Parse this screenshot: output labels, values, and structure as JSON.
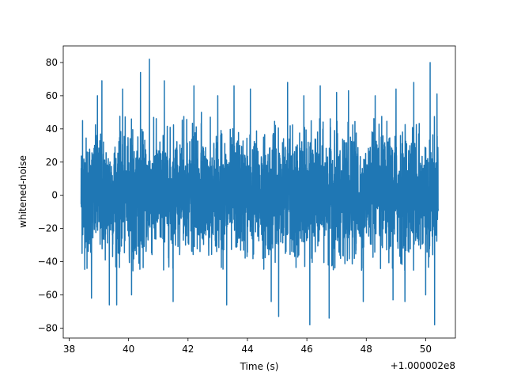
{
  "chart_data": {
    "type": "line",
    "xlabel": "Time (s)",
    "ylabel": "whitened-noise",
    "offset_text": "+1.000002e8",
    "xlim": [
      37.8,
      51.0
    ],
    "ylim": [
      -86,
      90
    ],
    "x_ticks": [
      38,
      40,
      42,
      44,
      46,
      48,
      50
    ],
    "x_tick_labels": [
      "38",
      "40",
      "42",
      "44",
      "46",
      "48",
      "50"
    ],
    "y_ticks": [
      -80,
      -60,
      -40,
      -20,
      0,
      20,
      40,
      60,
      80
    ],
    "y_tick_labels": [
      "−80",
      "−60",
      "−40",
      "−20",
      "0",
      "20",
      "40",
      "60",
      "80"
    ],
    "grid": false,
    "series": [
      {
        "color": "#1f77b4",
        "x_start": 38.4,
        "x_end": 50.42,
        "spikes": [
          {
            "x": 38.45,
            "y": 45
          },
          {
            "x": 38.6,
            "y": -44
          },
          {
            "x": 38.75,
            "y": -62
          },
          {
            "x": 38.95,
            "y": 60
          },
          {
            "x": 39.1,
            "y": 69
          },
          {
            "x": 39.35,
            "y": -66
          },
          {
            "x": 39.6,
            "y": -66
          },
          {
            "x": 39.8,
            "y": 64
          },
          {
            "x": 40.1,
            "y": -60
          },
          {
            "x": 40.4,
            "y": 74
          },
          {
            "x": 40.7,
            "y": 82
          },
          {
            "x": 41.2,
            "y": 69
          },
          {
            "x": 41.5,
            "y": -64
          },
          {
            "x": 42.2,
            "y": 66
          },
          {
            "x": 42.45,
            "y": 50
          },
          {
            "x": 43.0,
            "y": 60
          },
          {
            "x": 43.3,
            "y": -66
          },
          {
            "x": 43.55,
            "y": 66
          },
          {
            "x": 44.1,
            "y": 64
          },
          {
            "x": 44.8,
            "y": -64
          },
          {
            "x": 45.05,
            "y": -73
          },
          {
            "x": 45.35,
            "y": 68
          },
          {
            "x": 45.9,
            "y": 60
          },
          {
            "x": 46.1,
            "y": -78
          },
          {
            "x": 46.45,
            "y": 66
          },
          {
            "x": 46.75,
            "y": -74
          },
          {
            "x": 47.0,
            "y": 62
          },
          {
            "x": 47.4,
            "y": 63
          },
          {
            "x": 47.9,
            "y": -64
          },
          {
            "x": 48.3,
            "y": 60
          },
          {
            "x": 48.9,
            "y": -63
          },
          {
            "x": 49.0,
            "y": 64
          },
          {
            "x": 49.3,
            "y": -64
          },
          {
            "x": 49.6,
            "y": 68
          },
          {
            "x": 50.0,
            "y": -60
          },
          {
            "x": 50.15,
            "y": 80
          },
          {
            "x": 50.3,
            "y": -78
          },
          {
            "x": 50.38,
            "y": 61
          }
        ]
      }
    ]
  }
}
